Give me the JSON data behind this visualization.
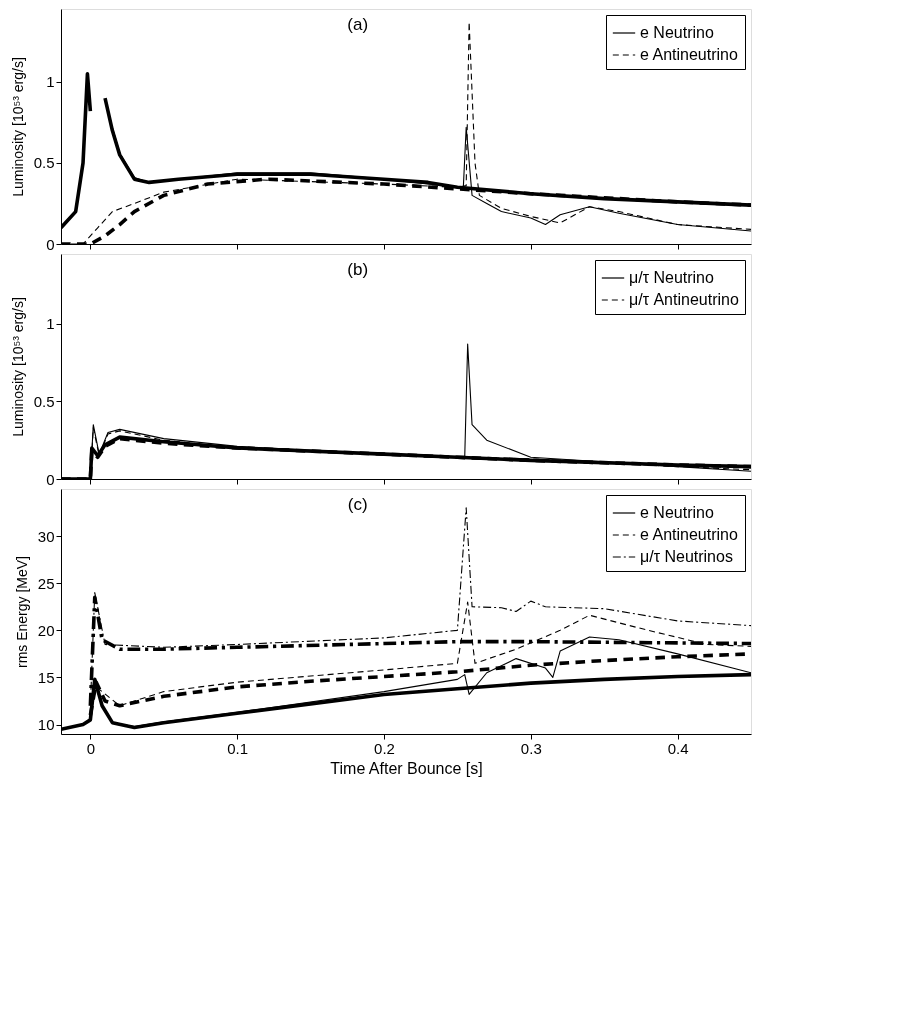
{
  "chart_data": [
    {
      "type": "line",
      "annotations": [
        "(a)"
      ],
      "ylabel": "Luminosity [10⁵³ erg/s]",
      "xlim": [
        -0.02,
        0.45
      ],
      "xticks": [
        0,
        0.1,
        0.2,
        0.3,
        0.4
      ],
      "ylim": [
        0,
        1.45
      ],
      "yticks": [
        0,
        0.5,
        1
      ],
      "tick_labels": "y",
      "legend": "top right",
      "series": [
        {
          "color": "#000000",
          "line_style": "solid",
          "x": [
            -0.02,
            -0.01,
            -0.005,
            -0.002,
            0,
            0.002,
            0.007,
            0.01,
            0.015,
            0.02,
            0.03,
            0.04,
            0.06,
            0.1,
            0.15,
            0.2,
            0.23,
            0.25,
            0.3,
            0.35,
            0.4,
            0.45
          ],
          "values": [
            0.1,
            0.2,
            0.5,
            1.05,
            0.82,
            null,
            null,
            0.9,
            0.7,
            0.55,
            0.4,
            0.38,
            0.4,
            0.43,
            0.43,
            0.4,
            0.38,
            0.35,
            0.31,
            0.28,
            0.26,
            0.24
          ]
        },
        {
          "color": "#000000",
          "line_style": "dashed",
          "x": [
            -0.02,
            0,
            0.01,
            0.02,
            0.03,
            0.05,
            0.08,
            0.12,
            0.2,
            0.25,
            0.3,
            0.4,
            0.45
          ],
          "values": [
            0,
            0,
            0.05,
            0.12,
            0.2,
            0.3,
            0.37,
            0.4,
            0.37,
            0.34,
            0.31,
            0.26,
            0.24
          ]
        },
        {
          "name": "e Neutrino",
          "color": "#000000",
          "line_style": "solid",
          "x": [
            0.015,
            0.02,
            0.03,
            0.04,
            0.06,
            0.1,
            0.15,
            0.2,
            0.25,
            0.254,
            0.256,
            0.26,
            0.27,
            0.28,
            0.3,
            0.31,
            0.32,
            0.34,
            0.36,
            0.4,
            0.45
          ],
          "values": [
            0.72,
            0.56,
            0.41,
            0.38,
            0.4,
            0.44,
            0.44,
            0.4,
            0.35,
            0.34,
            0.72,
            0.3,
            0.25,
            0.2,
            0.16,
            0.12,
            0.18,
            0.23,
            0.19,
            0.12,
            0.08
          ]
        },
        {
          "name": "e Antineutrino",
          "color": "#000000",
          "line_style": "dashed",
          "x": [
            -0.02,
            -0.005,
            0.005,
            0.015,
            0.03,
            0.05,
            0.1,
            0.2,
            0.25,
            0.256,
            0.258,
            0.262,
            0.265,
            0.28,
            0.3,
            0.32,
            0.34,
            0.36,
            0.4,
            0.45
          ],
          "values": [
            0,
            0,
            0.1,
            0.2,
            0.25,
            0.32,
            0.4,
            0.37,
            0.35,
            0.36,
            1.37,
            0.5,
            0.3,
            0.22,
            0.17,
            0.13,
            0.23,
            0.2,
            0.12,
            0.09
          ]
        }
      ]
    },
    {
      "type": "line",
      "annotations": [
        "(b)"
      ],
      "ylabel": "Luminosity [10⁵³ erg/s]",
      "xlim": [
        -0.02,
        0.45
      ],
      "xticks": [
        0,
        0.1,
        0.2,
        0.3,
        0.4
      ],
      "ylim": [
        0,
        1.45
      ],
      "yticks": [
        0,
        0.5,
        1
      ],
      "tick_labels": "y",
      "legend": "top right",
      "series": [
        {
          "color": "#000000",
          "line_style": "solid",
          "x": [
            -0.02,
            0,
            0.001,
            0.005,
            0.01,
            0.02,
            0.05,
            0.1,
            0.2,
            0.25,
            0.3,
            0.4,
            0.45
          ],
          "values": [
            0,
            0,
            0.2,
            0.15,
            0.22,
            0.27,
            0.24,
            0.2,
            0.16,
            0.14,
            0.12,
            0.09,
            0.08
          ]
        },
        {
          "color": "#000000",
          "line_style": "dashed",
          "x": [
            -0.02,
            0,
            0.001,
            0.005,
            0.01,
            0.02,
            0.05,
            0.1,
            0.2,
            0.25,
            0.3,
            0.4,
            0.45
          ],
          "values": [
            0,
            0,
            0.18,
            0.14,
            0.21,
            0.26,
            0.23,
            0.2,
            0.16,
            0.14,
            0.12,
            0.09,
            0.08
          ]
        },
        {
          "name": "μ/τ Neutrino",
          "color": "#000000",
          "line_style": "solid",
          "x": [
            -0.02,
            0,
            0.002,
            0.006,
            0.012,
            0.02,
            0.05,
            0.1,
            0.2,
            0.255,
            0.257,
            0.26,
            0.27,
            0.3,
            0.4,
            0.45
          ],
          "values": [
            0,
            0,
            0.35,
            0.16,
            0.3,
            0.32,
            0.26,
            0.21,
            0.16,
            0.14,
            0.87,
            0.35,
            0.25,
            0.14,
            0.08,
            0.05
          ]
        },
        {
          "name": "μ/τ Antineutrino",
          "color": "#000000",
          "line_style": "dashed",
          "x": [
            -0.02,
            0,
            0.002,
            0.006,
            0.012,
            0.02,
            0.05,
            0.1,
            0.2,
            0.255,
            0.3,
            0.4,
            0.45
          ],
          "values": [
            0,
            0,
            0.33,
            0.15,
            0.29,
            0.31,
            0.25,
            0.2,
            0.16,
            0.14,
            0.13,
            0.08,
            0.06
          ]
        }
      ]
    },
    {
      "type": "line",
      "annotations": [
        "(c)"
      ],
      "xlabel": "Time After Bounce [s]",
      "ylabel": "rms Energy [MeV]",
      "xlim": [
        -0.02,
        0.45
      ],
      "xticks": [
        0,
        0.1,
        0.2,
        0.3,
        0.4
      ],
      "ylim": [
        9,
        35
      ],
      "yticks": [
        10,
        15,
        20,
        25,
        30
      ],
      "legend": "top right",
      "series": [
        {
          "color": "#000000",
          "line_style": "solid",
          "x": [
            -0.02,
            -0.005,
            0,
            0.003,
            0.008,
            0.015,
            0.03,
            0.05,
            0.1,
            0.15,
            0.2,
            0.25,
            0.3,
            0.35,
            0.4,
            0.45
          ],
          "values": [
            9.5,
            10,
            10.5,
            14.8,
            12,
            10.2,
            9.7,
            10.2,
            11.2,
            12.2,
            13.2,
            13.8,
            14.4,
            14.8,
            15.1,
            15.3
          ]
        },
        {
          "color": "#000000",
          "line_style": "dashed",
          "x": [
            0,
            0.004,
            0.01,
            0.02,
            0.05,
            0.1,
            0.15,
            0.2,
            0.25,
            0.3,
            0.35,
            0.4,
            0.45
          ],
          "values": [
            11,
            14.5,
            12.5,
            12,
            13,
            14,
            14.6,
            15.1,
            15.6,
            16.3,
            16.8,
            17.2,
            17.5
          ]
        },
        {
          "color": "#000000",
          "line_style": "dashdot",
          "x": [
            0,
            0.003,
            0.008,
            0.02,
            0.05,
            0.1,
            0.2,
            0.25,
            0.3,
            0.45
          ],
          "values": [
            12,
            23.5,
            19,
            18,
            18,
            18.2,
            18.6,
            18.8,
            18.8,
            18.6
          ]
        },
        {
          "name": "e Neutrino",
          "color": "#000000",
          "line_style": "solid",
          "x": [
            -0.02,
            -0.005,
            0,
            0.003,
            0.008,
            0.015,
            0.03,
            0.05,
            0.1,
            0.2,
            0.25,
            0.255,
            0.258,
            0.27,
            0.29,
            0.31,
            0.315,
            0.32,
            0.34,
            0.36,
            0.4,
            0.45
          ],
          "values": [
            9.5,
            10,
            10.5,
            14.8,
            12,
            10.2,
            9.8,
            10.3,
            11.3,
            13.5,
            14.8,
            15.3,
            13.2,
            15.5,
            17,
            16,
            15,
            17.8,
            19.3,
            19,
            17.5,
            15.5
          ]
        },
        {
          "name": "e Antineutrino",
          "color": "#000000",
          "line_style": "dashed",
          "x": [
            0,
            0.004,
            0.02,
            0.05,
            0.1,
            0.2,
            0.25,
            0.257,
            0.262,
            0.29,
            0.32,
            0.34,
            0.38,
            0.42,
            0.45
          ],
          "values": [
            11,
            14,
            12,
            13.5,
            14.5,
            15.8,
            16.5,
            23,
            16.5,
            18,
            20,
            21.6,
            20,
            18.5,
            18.3
          ]
        },
        {
          "name": "μ/τ Neutrinos",
          "color": "#000000",
          "line_style": "dashdot",
          "x": [
            0,
            0.003,
            0.01,
            0.05,
            0.1,
            0.2,
            0.25,
            0.256,
            0.26,
            0.28,
            0.29,
            0.3,
            0.31,
            0.35,
            0.4,
            0.45
          ],
          "values": [
            12,
            24,
            18.5,
            18.2,
            18.5,
            19.2,
            20,
            33,
            22.5,
            22.4,
            22,
            23.1,
            22.5,
            22.3,
            21,
            20.5
          ]
        }
      ]
    }
  ]
}
